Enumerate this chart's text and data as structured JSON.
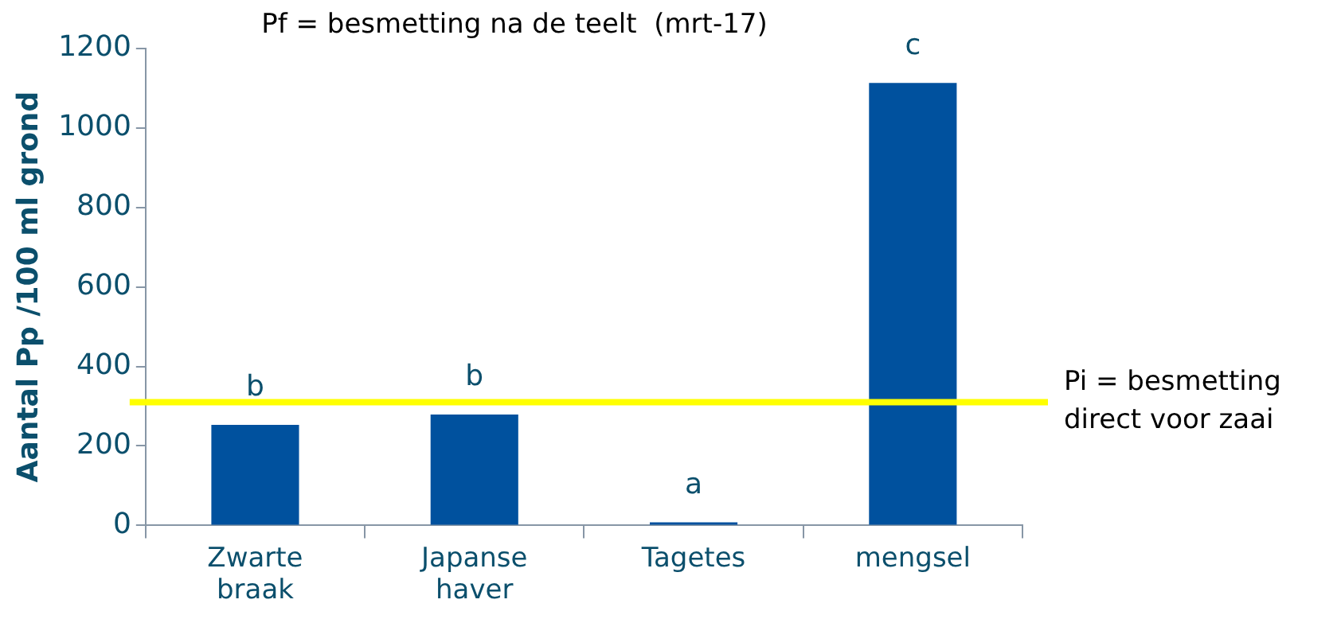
{
  "chart_data": {
    "type": "bar",
    "title": "Pf = besmetting na de teelt  (mrt-17)",
    "ylabel": "Aantal Pp /100 ml grond",
    "categories": [
      "Zwarte braak",
      "Japanse haver",
      "Tagetes",
      "mengsel"
    ],
    "values": [
      253,
      279,
      8,
      1113
    ],
    "color": "#00519e",
    "ylim": [
      0,
      1200
    ],
    "yticks": [
      0,
      200,
      400,
      600,
      800,
      1000,
      1200
    ],
    "grid": false,
    "legend": false,
    "ref_lines": [
      {
        "axis": "y",
        "value": 310,
        "label": "Pi = besmetting direct voor zaai",
        "color": "#ffff00"
      }
    ],
    "annotations": [
      {
        "text": "b",
        "x": "Zwarte braak",
        "y": 253
      },
      {
        "text": "b",
        "x": "Japanse haver",
        "y": 279
      },
      {
        "text": "a",
        "x": "Tagetes",
        "y": 8
      },
      {
        "text": "c",
        "x": "mengsel",
        "y": 1113
      }
    ]
  }
}
